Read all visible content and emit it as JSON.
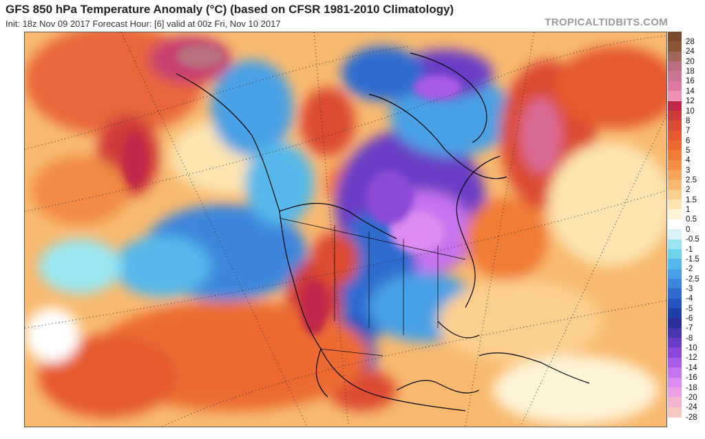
{
  "header": {
    "title": "GFS 850 hPa Temperature Anomaly (°C) (based on CFSR 1981-2010 Climatology)",
    "subtitle": "Init: 18z Nov 09 2017   Forecast Hour: [6]   valid at 00z Fri, Nov 10 2017",
    "brand": "TROPICALTIDBITS.COM"
  },
  "colorbar": {
    "labels": [
      "28",
      "24",
      "20",
      "18",
      "16",
      "14",
      "12",
      "10",
      "8",
      "7",
      "6",
      "5",
      "4",
      "3",
      "2.5",
      "2",
      "1.5",
      "1",
      "0.5",
      "0",
      "-0.5",
      "-1",
      "-1.5",
      "-2",
      "-2.5",
      "-3",
      "-4",
      "-5",
      "-6",
      "-7",
      "-8",
      "-10",
      "-12",
      "-14",
      "-16",
      "-18",
      "-20",
      "-24",
      "-28"
    ],
    "colors": [
      "#7a4a2c",
      "#8a5636",
      "#a0675a",
      "#b96f80",
      "#cc7493",
      "#df79a4",
      "#ee8fb4",
      "#c0284a",
      "#cf3a3a",
      "#dc4b33",
      "#e65a2f",
      "#ec6a30",
      "#f07c36",
      "#f38e44",
      "#f6a45a",
      "#f8b870",
      "#fbcf8e",
      "#fde4b1",
      "#fef3d6",
      "#ffffff",
      "#d8f4f6",
      "#9ae6f0",
      "#6fd3ec",
      "#56b8ea",
      "#4aa0e4",
      "#3e86dc",
      "#2f6cd0",
      "#2454be",
      "#1d3fa8",
      "#2a2f9a",
      "#4a34b0",
      "#6b3cc6",
      "#8c48d8",
      "#a95ce6",
      "#c673ee",
      "#dc8cf0",
      "#ec9fe4",
      "#f3b5d0",
      "#f7c8bf"
    ]
  }
}
